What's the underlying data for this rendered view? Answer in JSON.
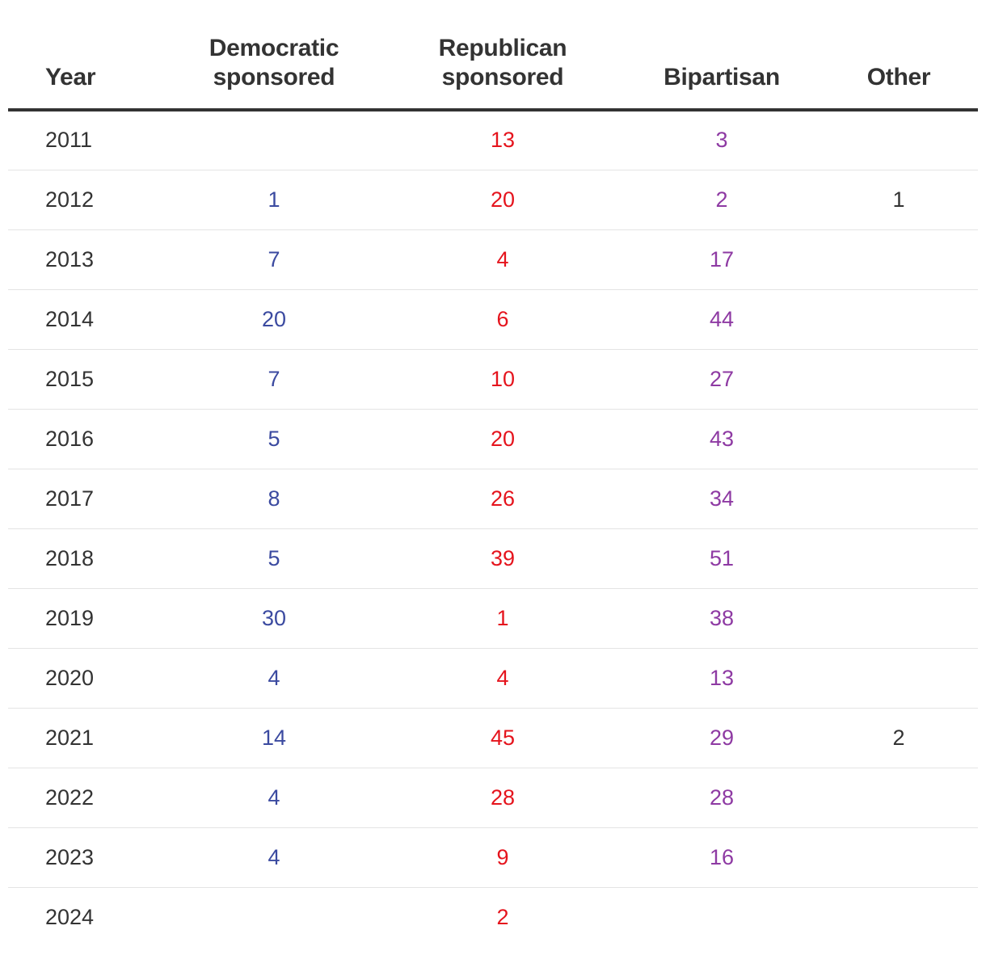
{
  "colors": {
    "democratic": "#3b4aa0",
    "republican": "#e5141d",
    "bipartisan": "#8e3aa3",
    "other": "#333333"
  },
  "chart_data": {
    "type": "table",
    "columns": [
      "Year",
      "Democratic sponsored",
      "Republican sponsored",
      "Bipartisan",
      "Other"
    ],
    "rows": [
      {
        "year": "2011",
        "democratic": "",
        "republican": "13",
        "bipartisan": "3",
        "other": ""
      },
      {
        "year": "2012",
        "democratic": "1",
        "republican": "20",
        "bipartisan": "2",
        "other": "1"
      },
      {
        "year": "2013",
        "democratic": "7",
        "republican": "4",
        "bipartisan": "17",
        "other": ""
      },
      {
        "year": "2014",
        "democratic": "20",
        "republican": "6",
        "bipartisan": "44",
        "other": ""
      },
      {
        "year": "2015",
        "democratic": "7",
        "republican": "10",
        "bipartisan": "27",
        "other": ""
      },
      {
        "year": "2016",
        "democratic": "5",
        "republican": "20",
        "bipartisan": "43",
        "other": ""
      },
      {
        "year": "2017",
        "democratic": "8",
        "republican": "26",
        "bipartisan": "34",
        "other": ""
      },
      {
        "year": "2018",
        "democratic": "5",
        "republican": "39",
        "bipartisan": "51",
        "other": ""
      },
      {
        "year": "2019",
        "democratic": "30",
        "republican": "1",
        "bipartisan": "38",
        "other": ""
      },
      {
        "year": "2020",
        "democratic": "4",
        "republican": "4",
        "bipartisan": "13",
        "other": ""
      },
      {
        "year": "2021",
        "democratic": "14",
        "republican": "45",
        "bipartisan": "29",
        "other": "2"
      },
      {
        "year": "2022",
        "democratic": "4",
        "republican": "28",
        "bipartisan": "28",
        "other": ""
      },
      {
        "year": "2023",
        "democratic": "4",
        "republican": "9",
        "bipartisan": "16",
        "other": ""
      },
      {
        "year": "2024",
        "democratic": "",
        "republican": "2",
        "bipartisan": "",
        "other": ""
      }
    ]
  }
}
